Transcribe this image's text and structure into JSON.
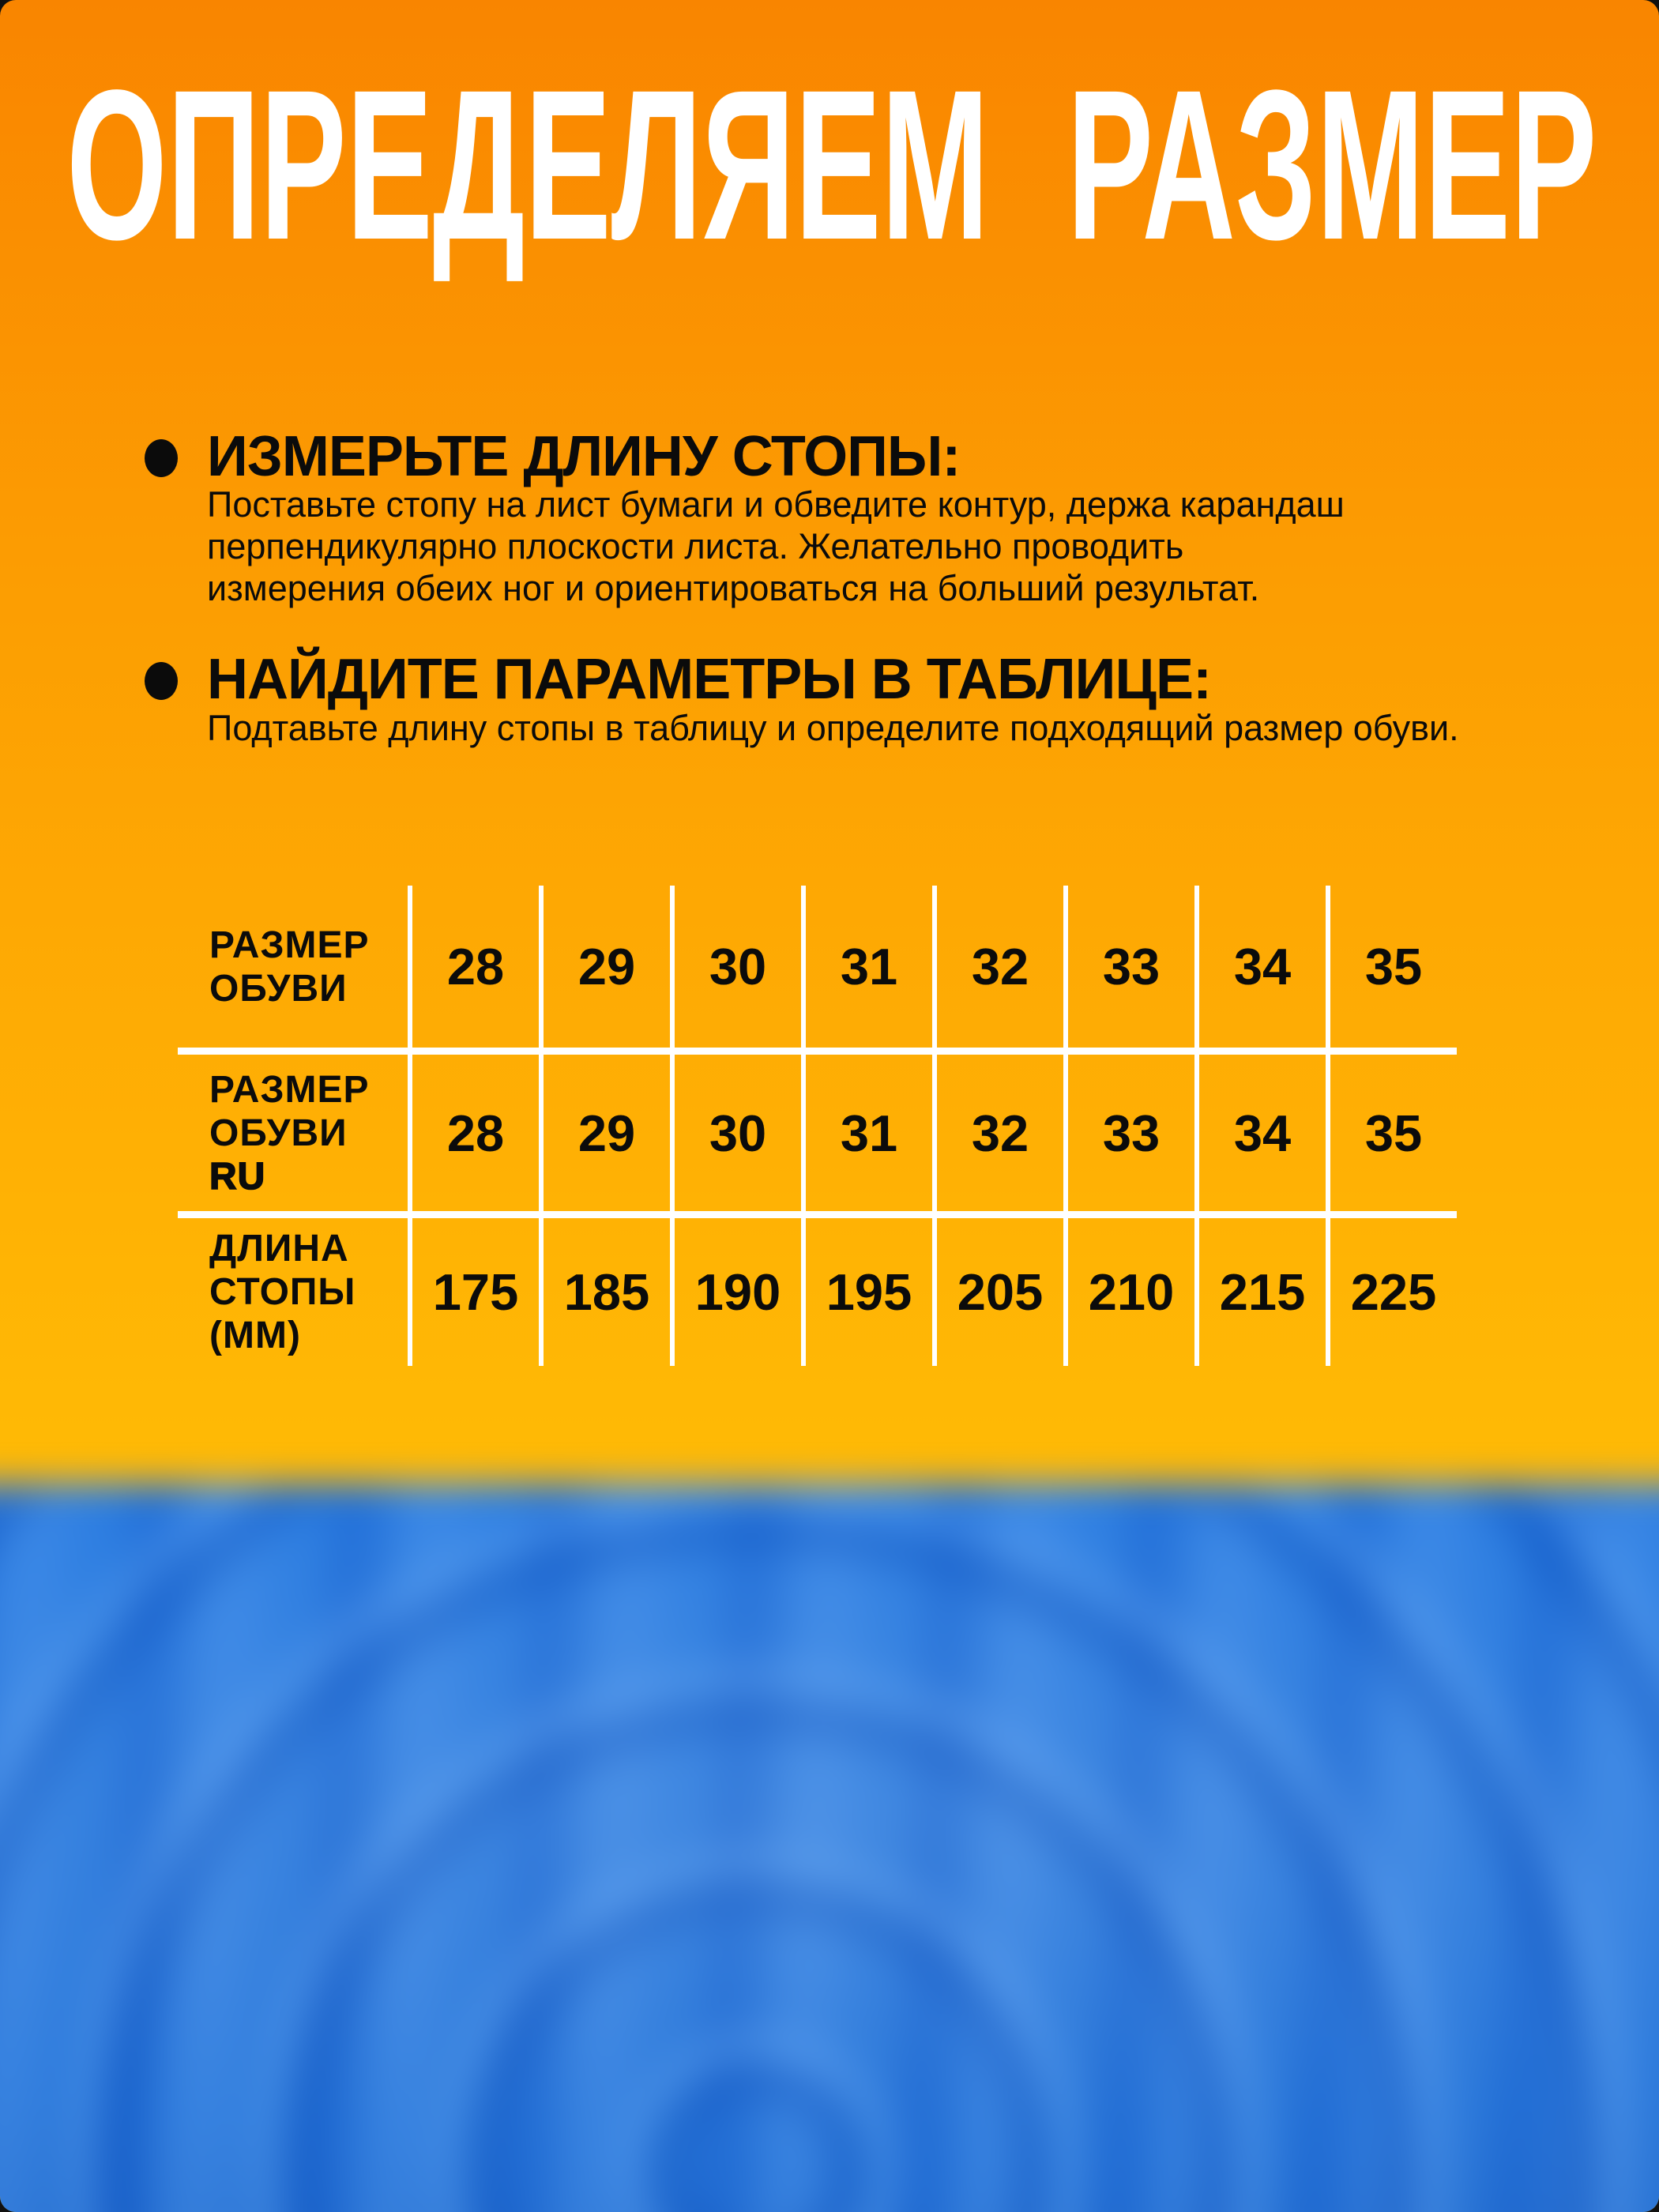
{
  "title": "ОПРЕДЕЛЯЕМ РАЗМЕР",
  "steps": [
    {
      "heading": "ИЗМЕРЬТЕ ДЛИНУ СТОПЫ:",
      "body": "Поставьте стопу на лист бумаги и обведите контур, держа карандаш\nперпендикулярно плоскости листа. Желательно проводить\nизмерения обеих ног и ориентироваться на больший результат."
    },
    {
      "heading": "НАЙДИТЕ ПАРАМЕТРЫ В ТАБЛИЦЕ:",
      "body": "Подтавьте длину стопы в таблицу и определите подходящий размер обуви."
    }
  ],
  "size_table": {
    "rows": [
      {
        "label": "РАЗМЕР ОБУВИ",
        "label_lines": [
          "РАЗМЕР",
          "ОБУВИ"
        ],
        "values": [
          "28",
          "29",
          "30",
          "31",
          "32",
          "33",
          "34",
          "35"
        ]
      },
      {
        "label": "РАЗМЕР ОБУВИ RU",
        "label_lines": [
          "РАЗМЕР",
          "ОБУВИ",
          "RU"
        ],
        "bold_line": "RU",
        "values": [
          "28",
          "29",
          "30",
          "31",
          "32",
          "33",
          "34",
          "35"
        ]
      },
      {
        "label": "ДЛИНА СТОПЫ (ММ)",
        "label_lines": [
          "ДЛИНА",
          "СТОПЫ",
          "(ММ)"
        ],
        "values": [
          "175",
          "185",
          "190",
          "195",
          "205",
          "210",
          "215",
          "225"
        ]
      }
    ]
  },
  "colors": {
    "bg_top": "#F98500",
    "bg_mid": "#FFB004",
    "bg_bottom": "#FFCC00",
    "text": "#0B0B0B",
    "table_lines": "#FFFFFF",
    "photo_blue": "#2E7FE2"
  }
}
